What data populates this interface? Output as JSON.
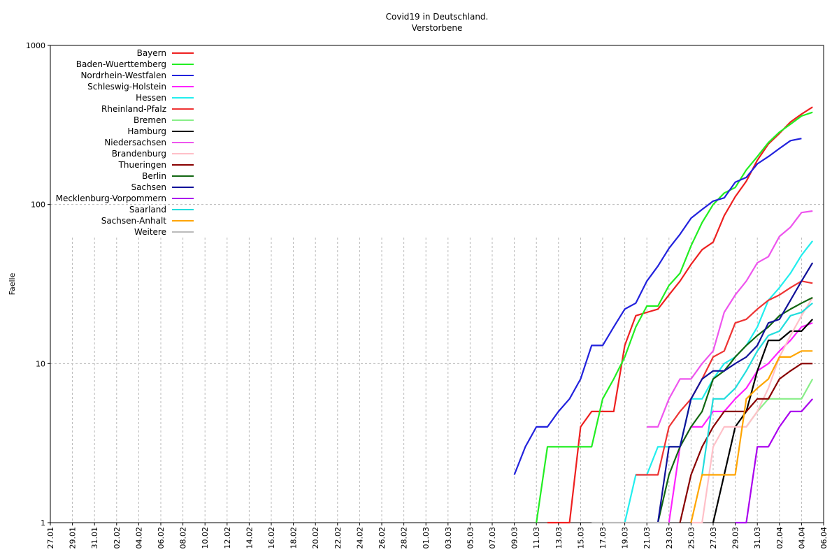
{
  "chart_data": {
    "type": "line",
    "title": "Covid19 in Deutschland.",
    "subtitle": "Verstorbene",
    "ylabel": "Faelle",
    "xlabel": "",
    "yscale": "log",
    "ylim": [
      1,
      1000
    ],
    "y_ticks": [
      "1",
      "10",
      "100",
      "1000"
    ],
    "x_range": [
      "2020-01-27",
      "2020-04-06"
    ],
    "x_ticks": [
      "27.01",
      "29.01",
      "31.01",
      "02.02",
      "04.02",
      "06.02",
      "08.02",
      "10.02",
      "12.02",
      "14.02",
      "16.02",
      "18.02",
      "20.02",
      "22.02",
      "24.02",
      "26.02",
      "28.02",
      "01.03",
      "03.03",
      "05.03",
      "07.03",
      "09.03",
      "11.03",
      "13.03",
      "15.03",
      "17.03",
      "19.03",
      "21.03",
      "23.03",
      "25.03",
      "27.03",
      "29.03",
      "31.03",
      "02.04",
      "04.04",
      "06.04"
    ],
    "grid": true,
    "legend_position": "top-left",
    "series": [
      {
        "name": "Bayern",
        "color": "#ee2020",
        "points": [
          [
            "2020-03-12",
            1
          ],
          [
            "2020-03-14",
            1
          ],
          [
            "2020-03-15",
            4
          ],
          [
            "2020-03-16",
            5
          ],
          [
            "2020-03-17",
            5
          ],
          [
            "2020-03-18",
            5
          ],
          [
            "2020-03-19",
            13
          ],
          [
            "2020-03-20",
            20
          ],
          [
            "2020-03-21",
            21
          ],
          [
            "2020-03-22",
            22
          ],
          [
            "2020-03-23",
            27
          ],
          [
            "2020-03-24",
            33
          ],
          [
            "2020-03-25",
            42
          ],
          [
            "2020-03-26",
            52
          ],
          [
            "2020-03-27",
            58
          ],
          [
            "2020-03-28",
            85
          ],
          [
            "2020-03-29",
            112
          ],
          [
            "2020-03-30",
            140
          ],
          [
            "2020-03-31",
            190
          ],
          [
            "2020-04-01",
            240
          ],
          [
            "2020-04-02",
            280
          ],
          [
            "2020-04-03",
            330
          ],
          [
            "2020-04-04",
            370
          ],
          [
            "2020-04-05",
            410
          ]
        ]
      },
      {
        "name": "Baden-Wuerttemberg",
        "color": "#22ee22",
        "points": [
          [
            "2020-03-11",
            1
          ],
          [
            "2020-03-12",
            3
          ],
          [
            "2020-03-13",
            3
          ],
          [
            "2020-03-14",
            3
          ],
          [
            "2020-03-15",
            3
          ],
          [
            "2020-03-16",
            3
          ],
          [
            "2020-03-17",
            6
          ],
          [
            "2020-03-18",
            8
          ],
          [
            "2020-03-19",
            11
          ],
          [
            "2020-03-20",
            17
          ],
          [
            "2020-03-21",
            23
          ],
          [
            "2020-03-22",
            23
          ],
          [
            "2020-03-23",
            31
          ],
          [
            "2020-03-24",
            37
          ],
          [
            "2020-03-25",
            55
          ],
          [
            "2020-03-26",
            77
          ],
          [
            "2020-03-27",
            100
          ],
          [
            "2020-03-28",
            118
          ],
          [
            "2020-03-29",
            128
          ],
          [
            "2020-03-30",
            165
          ],
          [
            "2020-03-31",
            200
          ],
          [
            "2020-04-01",
            245
          ],
          [
            "2020-04-02",
            285
          ],
          [
            "2020-04-03",
            320
          ],
          [
            "2020-04-04",
            360
          ],
          [
            "2020-04-05",
            380
          ]
        ]
      },
      {
        "name": "Nordrhein-Westfalen",
        "color": "#2222dd",
        "points": [
          [
            "2020-03-09",
            2
          ],
          [
            "2020-03-10",
            3
          ],
          [
            "2020-03-11",
            4
          ],
          [
            "2020-03-12",
            4
          ],
          [
            "2020-03-13",
            5
          ],
          [
            "2020-03-14",
            6
          ],
          [
            "2020-03-15",
            8
          ],
          [
            "2020-03-16",
            13
          ],
          [
            "2020-03-17",
            13
          ],
          [
            "2020-03-18",
            17
          ],
          [
            "2020-03-19",
            22
          ],
          [
            "2020-03-20",
            24
          ],
          [
            "2020-03-21",
            33
          ],
          [
            "2020-03-22",
            41
          ],
          [
            "2020-03-23",
            53
          ],
          [
            "2020-03-24",
            65
          ],
          [
            "2020-03-25",
            82
          ],
          [
            "2020-03-26",
            93
          ],
          [
            "2020-03-27",
            105
          ],
          [
            "2020-03-28",
            110
          ],
          [
            "2020-03-29",
            138
          ],
          [
            "2020-03-30",
            148
          ],
          [
            "2020-03-31",
            180
          ],
          [
            "2020-04-01",
            200
          ],
          [
            "2020-04-02",
            225
          ],
          [
            "2020-04-03",
            252
          ],
          [
            "2020-04-04",
            260
          ]
        ]
      },
      {
        "name": "Schleswig-Holstein",
        "color": "#ff22ff",
        "points": [
          [
            "2020-03-23",
            1
          ],
          [
            "2020-03-24",
            3
          ],
          [
            "2020-03-25",
            4
          ],
          [
            "2020-03-26",
            4
          ],
          [
            "2020-03-27",
            5
          ],
          [
            "2020-03-28",
            5
          ],
          [
            "2020-03-29",
            6
          ],
          [
            "2020-03-30",
            7
          ],
          [
            "2020-03-31",
            9
          ],
          [
            "2020-04-01",
            10
          ],
          [
            "2020-04-02",
            12
          ],
          [
            "2020-04-03",
            14
          ],
          [
            "2020-04-04",
            17
          ],
          [
            "2020-04-05",
            18
          ]
        ]
      },
      {
        "name": "Hessen",
        "color": "#22eeee",
        "points": [
          [
            "2020-03-19",
            1
          ],
          [
            "2020-03-20",
            2
          ],
          [
            "2020-03-21",
            2
          ],
          [
            "2020-03-22",
            3
          ],
          [
            "2020-03-23",
            3
          ],
          [
            "2020-03-24",
            3
          ],
          [
            "2020-03-25",
            6
          ],
          [
            "2020-03-26",
            6
          ],
          [
            "2020-03-27",
            8
          ],
          [
            "2020-03-28",
            10
          ],
          [
            "2020-03-29",
            11
          ],
          [
            "2020-03-30",
            13
          ],
          [
            "2020-03-31",
            17
          ],
          [
            "2020-04-01",
            25
          ],
          [
            "2020-04-02",
            30
          ],
          [
            "2020-04-03",
            37
          ],
          [
            "2020-04-04",
            48
          ],
          [
            "2020-04-05",
            59
          ]
        ]
      },
      {
        "name": "Rheinland-Pfalz",
        "color": "#ee3333",
        "points": [
          [
            "2020-03-20",
            2
          ],
          [
            "2020-03-21",
            2
          ],
          [
            "2020-03-22",
            2
          ],
          [
            "2020-03-23",
            4
          ],
          [
            "2020-03-24",
            5
          ],
          [
            "2020-03-25",
            6
          ],
          [
            "2020-03-26",
            8
          ],
          [
            "2020-03-27",
            11
          ],
          [
            "2020-03-28",
            12
          ],
          [
            "2020-03-29",
            18
          ],
          [
            "2020-03-30",
            19
          ],
          [
            "2020-03-31",
            22
          ],
          [
            "2020-04-01",
            25
          ],
          [
            "2020-04-02",
            27
          ],
          [
            "2020-04-03",
            30
          ],
          [
            "2020-04-04",
            33
          ],
          [
            "2020-04-05",
            32
          ]
        ]
      },
      {
        "name": "Bremen",
        "color": "#88ee88",
        "points": [
          [
            "2020-03-29",
            4
          ],
          [
            "2020-03-30",
            4
          ],
          [
            "2020-03-31",
            5
          ],
          [
            "2020-04-01",
            6
          ],
          [
            "2020-04-02",
            6
          ],
          [
            "2020-04-03",
            6
          ],
          [
            "2020-04-04",
            6
          ],
          [
            "2020-04-05",
            8
          ]
        ]
      },
      {
        "name": "Hamburg",
        "color": "#000000",
        "points": [
          [
            "2020-03-27",
            1
          ],
          [
            "2020-03-28",
            2
          ],
          [
            "2020-03-29",
            4
          ],
          [
            "2020-03-30",
            5
          ],
          [
            "2020-03-31",
            9
          ],
          [
            "2020-04-01",
            14
          ],
          [
            "2020-04-02",
            14
          ],
          [
            "2020-04-03",
            16
          ],
          [
            "2020-04-04",
            16
          ],
          [
            "2020-04-05",
            19
          ]
        ]
      },
      {
        "name": "Niedersachsen",
        "color": "#ee55ee",
        "points": [
          [
            "2020-03-21",
            4
          ],
          [
            "2020-03-22",
            4
          ],
          [
            "2020-03-23",
            6
          ],
          [
            "2020-03-24",
            8
          ],
          [
            "2020-03-25",
            8
          ],
          [
            "2020-03-26",
            10
          ],
          [
            "2020-03-27",
            12
          ],
          [
            "2020-03-28",
            21
          ],
          [
            "2020-03-29",
            27
          ],
          [
            "2020-03-30",
            33
          ],
          [
            "2020-03-31",
            43
          ],
          [
            "2020-04-01",
            47
          ],
          [
            "2020-04-02",
            63
          ],
          [
            "2020-04-03",
            72
          ],
          [
            "2020-04-04",
            89
          ],
          [
            "2020-04-05",
            91
          ]
        ]
      },
      {
        "name": "Brandenburg",
        "color": "#ffc0c8",
        "points": [
          [
            "2020-03-25",
            1
          ],
          [
            "2020-03-26",
            1
          ],
          [
            "2020-03-27",
            3
          ],
          [
            "2020-03-28",
            4
          ],
          [
            "2020-03-29",
            4
          ],
          [
            "2020-03-30",
            4
          ],
          [
            "2020-03-31",
            5
          ],
          [
            "2020-04-01",
            7
          ],
          [
            "2020-04-02",
            11
          ],
          [
            "2020-04-03",
            15
          ],
          [
            "2020-04-04",
            20
          ],
          [
            "2020-04-05",
            26
          ]
        ]
      },
      {
        "name": "Thueringen",
        "color": "#880000",
        "points": [
          [
            "2020-03-24",
            1
          ],
          [
            "2020-03-25",
            2
          ],
          [
            "2020-03-26",
            3
          ],
          [
            "2020-03-27",
            4
          ],
          [
            "2020-03-28",
            5
          ],
          [
            "2020-03-29",
            5
          ],
          [
            "2020-03-30",
            5
          ],
          [
            "2020-03-31",
            6
          ],
          [
            "2020-04-01",
            6
          ],
          [
            "2020-04-02",
            8
          ],
          [
            "2020-04-03",
            9
          ],
          [
            "2020-04-04",
            10
          ],
          [
            "2020-04-05",
            10
          ]
        ]
      },
      {
        "name": "Berlin",
        "color": "#116611",
        "points": [
          [
            "2020-03-22",
            1
          ],
          [
            "2020-03-23",
            2
          ],
          [
            "2020-03-24",
            3
          ],
          [
            "2020-03-25",
            4
          ],
          [
            "2020-03-26",
            5
          ],
          [
            "2020-03-27",
            8
          ],
          [
            "2020-03-28",
            9
          ],
          [
            "2020-03-29",
            11
          ],
          [
            "2020-03-30",
            13
          ],
          [
            "2020-03-31",
            15
          ],
          [
            "2020-04-01",
            17
          ],
          [
            "2020-04-02",
            20
          ],
          [
            "2020-04-03",
            22
          ],
          [
            "2020-04-04",
            24
          ],
          [
            "2020-04-05",
            26
          ]
        ]
      },
      {
        "name": "Sachsen",
        "color": "#111199",
        "points": [
          [
            "2020-03-22",
            1
          ],
          [
            "2020-03-23",
            3
          ],
          [
            "2020-03-24",
            3
          ],
          [
            "2020-03-25",
            6
          ],
          [
            "2020-03-26",
            8
          ],
          [
            "2020-03-27",
            9
          ],
          [
            "2020-03-28",
            9
          ],
          [
            "2020-03-29",
            10
          ],
          [
            "2020-03-30",
            11
          ],
          [
            "2020-03-31",
            13
          ],
          [
            "2020-04-01",
            18
          ],
          [
            "2020-04-02",
            19
          ],
          [
            "2020-04-03",
            25
          ],
          [
            "2020-04-04",
            33
          ],
          [
            "2020-04-05",
            43
          ]
        ]
      },
      {
        "name": "Mecklenburg-Vorpommern",
        "color": "#aa00ee",
        "points": [
          [
            "2020-03-29",
            1
          ],
          [
            "2020-03-30",
            1
          ],
          [
            "2020-03-31",
            3
          ],
          [
            "2020-04-01",
            3
          ],
          [
            "2020-04-02",
            4
          ],
          [
            "2020-04-03",
            5
          ],
          [
            "2020-04-04",
            5
          ],
          [
            "2020-04-05",
            6
          ]
        ]
      },
      {
        "name": "Saarland",
        "color": "#22dddd",
        "points": [
          [
            "2020-03-26",
            2
          ],
          [
            "2020-03-27",
            6
          ],
          [
            "2020-03-28",
            6
          ],
          [
            "2020-03-29",
            7
          ],
          [
            "2020-03-30",
            9
          ],
          [
            "2020-03-31",
            12
          ],
          [
            "2020-04-01",
            15
          ],
          [
            "2020-04-02",
            16
          ],
          [
            "2020-04-03",
            20
          ],
          [
            "2020-04-04",
            21
          ],
          [
            "2020-04-05",
            24
          ]
        ]
      },
      {
        "name": "Sachsen-Anhalt",
        "color": "#ffa500",
        "points": [
          [
            "2020-03-25",
            1
          ],
          [
            "2020-03-26",
            2
          ],
          [
            "2020-03-27",
            2
          ],
          [
            "2020-03-28",
            2
          ],
          [
            "2020-03-29",
            2
          ],
          [
            "2020-03-30",
            6
          ],
          [
            "2020-03-31",
            7
          ],
          [
            "2020-04-01",
            8
          ],
          [
            "2020-04-02",
            11
          ],
          [
            "2020-04-03",
            11
          ],
          [
            "2020-04-04",
            12
          ],
          [
            "2020-04-05",
            12
          ]
        ]
      },
      {
        "name": "Weitere",
        "color": "#bbbbbb",
        "points": [
          [
            "2020-03-16",
            1
          ],
          [
            "2020-03-23",
            1
          ]
        ]
      }
    ]
  }
}
